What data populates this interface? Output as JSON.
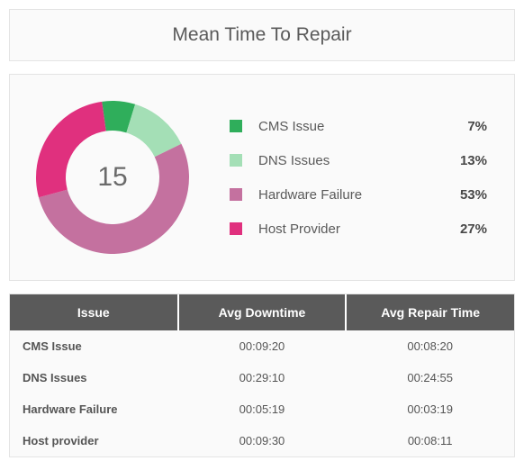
{
  "header": {
    "title": "Mean Time To Repair"
  },
  "chart": {
    "type": "donut",
    "center_value": "15",
    "center_fontsize": 30,
    "outer_radius": 85,
    "inner_radius": 52,
    "start_angle_deg": -8,
    "background_color": "#fafafa",
    "slices": [
      {
        "label": "CMS Issue",
        "value": 7,
        "percent_label": "7%",
        "color": "#2fae5b"
      },
      {
        "label": "DNS Issues",
        "value": 13,
        "percent_label": "13%",
        "color": "#a4dfb6"
      },
      {
        "label": "Hardware Failure",
        "value": 53,
        "percent_label": "53%",
        "color": "#c4719f"
      },
      {
        "label": "Host Provider",
        "value": 27,
        "percent_label": "27%",
        "color": "#e0307e"
      }
    ],
    "legend_fontsize": 15,
    "legend_swatch_size": 14
  },
  "table": {
    "header_bg": "#5a5a5a",
    "header_fg": "#ffffff",
    "columns": [
      "Issue",
      "Avg Downtime",
      "Avg Repair Time"
    ],
    "rows": [
      [
        "CMS Issue",
        "00:09:20",
        "00:08:20"
      ],
      [
        "DNS Issues",
        "00:29:10",
        "00:24:55"
      ],
      [
        "Hardware Failure",
        "00:05:19",
        "00:03:19"
      ],
      [
        "Host provider",
        "00:09:30",
        "00:08:11"
      ]
    ]
  }
}
